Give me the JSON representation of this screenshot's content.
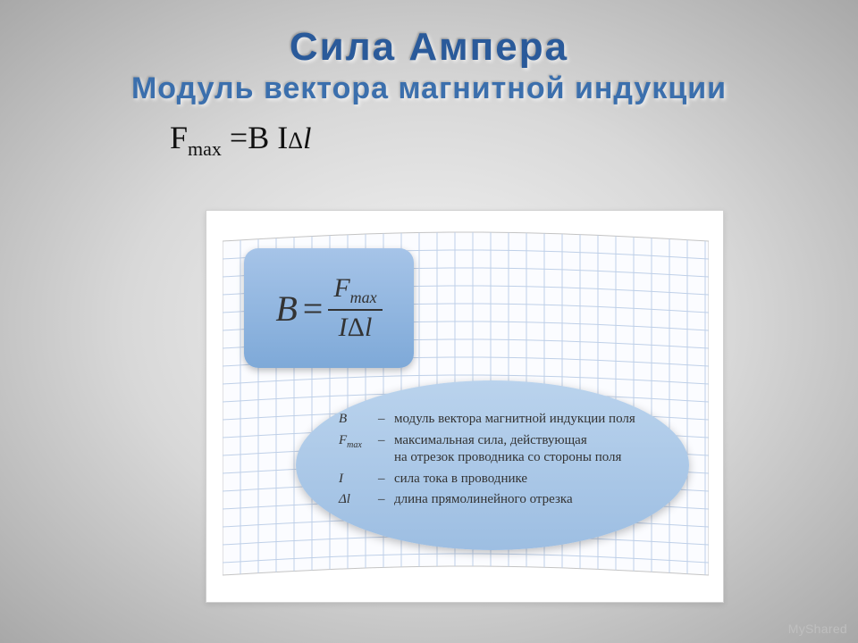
{
  "title": {
    "main": "Сила Ампера",
    "sub": "Модуль вектора магнитной индукции",
    "color_main": "#2a5a9a",
    "color_sub": "#3b6fad",
    "fontsize_main": 44,
    "fontsize_sub": 34
  },
  "formula_top": {
    "lhs_F": "F",
    "lhs_sub": "max",
    "eq": " =",
    "rhs": "B I",
    "delta": "Δ",
    "ell": "l",
    "fontsize": 36,
    "color": "#111111"
  },
  "card": {
    "background": "#ffffff",
    "border": "#d0d0d0",
    "paper": {
      "grid_color": "#bfd0e8",
      "background": "#fbfcff",
      "cell": 20,
      "curve_amp": 10
    }
  },
  "formula_box": {
    "B": "B",
    "eq": "=",
    "num_F": "F",
    "num_sub": "max",
    "den_I": "I",
    "den_delta": "Δ",
    "den_l": "l",
    "bg_top": "#a6c4e8",
    "bg_bottom": "#7ea9d8",
    "radius": 16,
    "fontsize": 40,
    "text_color": "#333333"
  },
  "legend": {
    "bg_top": "#bad3ed",
    "bg_bottom": "#9dbee2",
    "fontsize": 15,
    "text_color": "#333333",
    "items": [
      {
        "sym": "B",
        "sub": "",
        "dash": "–",
        "text": "модуль вектора магнитной индукции поля",
        "text2": ""
      },
      {
        "sym": "F",
        "sub": "max",
        "dash": "–",
        "text": "максимальная сила, действующая",
        "text2": "на отрезок проводника со стороны поля"
      },
      {
        "sym": "I",
        "sub": "",
        "dash": "–",
        "text": "сила тока в проводнике",
        "text2": ""
      },
      {
        "sym": "Δl",
        "sub": "",
        "dash": "–",
        "text": "длина прямолинейного отрезка",
        "text2": ""
      }
    ]
  },
  "watermark": "MyShared"
}
